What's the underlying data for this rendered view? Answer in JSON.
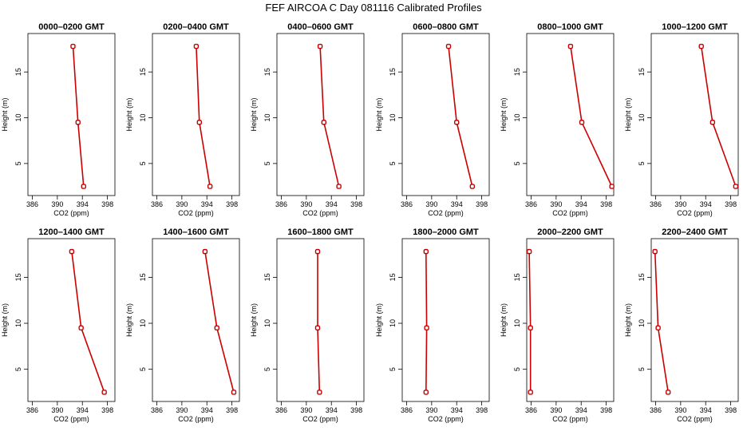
{
  "figure": {
    "title": "FEF AIRCOA C  Day 081116  Calibrated Profiles"
  },
  "chart_data": [
    {
      "type": "line",
      "title": "0000–0200 GMT",
      "xlabel": "CO2 (ppm)",
      "ylabel": "Height (m)",
      "xlim": [
        385.3,
        399.2
      ],
      "ylim": [
        1.5,
        19.2
      ],
      "xticks": [
        386,
        390,
        394,
        398
      ],
      "xtick_labels": [
        "386",
        "390",
        "394",
        "398"
      ],
      "yticks": [
        5,
        10,
        15
      ],
      "ytick_labels": [
        "5",
        "10",
        "15"
      ],
      "points": [
        {
          "co2": 392.5,
          "height": 17.8
        },
        {
          "co2": 393.3,
          "height": 9.5
        },
        {
          "co2": 394.2,
          "height": 2.5
        }
      ]
    },
    {
      "type": "line",
      "title": "0200–0400 GMT",
      "xlabel": "CO2 (ppm)",
      "ylabel": "Height (m)",
      "xlim": [
        385.3,
        399.2
      ],
      "ylim": [
        1.5,
        19.2
      ],
      "xticks": [
        386,
        390,
        394,
        398
      ],
      "xtick_labels": [
        "386",
        "390",
        "394",
        "398"
      ],
      "yticks": [
        5,
        10,
        15
      ],
      "ytick_labels": [
        "5",
        "10",
        "15"
      ],
      "points": [
        {
          "co2": 392.3,
          "height": 17.8
        },
        {
          "co2": 392.8,
          "height": 9.5
        },
        {
          "co2": 394.5,
          "height": 2.5
        }
      ]
    },
    {
      "type": "line",
      "title": "0400–0600 GMT",
      "xlabel": "CO2 (ppm)",
      "ylabel": "Height (m)",
      "xlim": [
        385.3,
        399.2
      ],
      "ylim": [
        1.5,
        19.2
      ],
      "xticks": [
        386,
        390,
        394,
        398
      ],
      "xtick_labels": [
        "386",
        "390",
        "394",
        "398"
      ],
      "yticks": [
        5,
        10,
        15
      ],
      "ytick_labels": [
        "5",
        "10",
        "15"
      ],
      "points": [
        {
          "co2": 392.2,
          "height": 17.8
        },
        {
          "co2": 392.8,
          "height": 9.5
        },
        {
          "co2": 395.2,
          "height": 2.5
        }
      ]
    },
    {
      "type": "line",
      "title": "0600–0800 GMT",
      "xlabel": "CO2 (ppm)",
      "ylabel": "Height (m)",
      "xlim": [
        385.3,
        399.2
      ],
      "ylim": [
        1.5,
        19.2
      ],
      "xticks": [
        386,
        390,
        394,
        398
      ],
      "xtick_labels": [
        "386",
        "390",
        "394",
        "398"
      ],
      "yticks": [
        5,
        10,
        15
      ],
      "ytick_labels": [
        "5",
        "10",
        "15"
      ],
      "points": [
        {
          "co2": 392.7,
          "height": 17.8
        },
        {
          "co2": 394.0,
          "height": 9.5
        },
        {
          "co2": 396.5,
          "height": 2.5
        }
      ]
    },
    {
      "type": "line",
      "title": "0800–1000 GMT",
      "xlabel": "CO2 (ppm)",
      "ylabel": "Height (m)",
      "xlim": [
        385.3,
        399.2
      ],
      "ylim": [
        1.5,
        19.2
      ],
      "xticks": [
        386,
        390,
        394,
        398
      ],
      "xtick_labels": [
        "386",
        "390",
        "394",
        "398"
      ],
      "yticks": [
        5,
        10,
        15
      ],
      "ytick_labels": [
        "5",
        "10",
        "15"
      ],
      "points": [
        {
          "co2": 392.3,
          "height": 17.8
        },
        {
          "co2": 394.1,
          "height": 9.5
        },
        {
          "co2": 398.9,
          "height": 2.5
        }
      ]
    },
    {
      "type": "line",
      "title": "1000–1200 GMT",
      "xlabel": "CO2 (ppm)",
      "ylabel": "Height (m)",
      "xlim": [
        385.3,
        399.2
      ],
      "ylim": [
        1.5,
        19.2
      ],
      "xticks": [
        386,
        390,
        394,
        398
      ],
      "xtick_labels": [
        "386",
        "390",
        "394",
        "398"
      ],
      "yticks": [
        5,
        10,
        15
      ],
      "ytick_labels": [
        "5",
        "10",
        "15"
      ],
      "points": [
        {
          "co2": 393.3,
          "height": 17.8
        },
        {
          "co2": 395.1,
          "height": 9.5
        },
        {
          "co2": 398.8,
          "height": 2.5
        }
      ]
    },
    {
      "type": "line",
      "title": "1200–1400 GMT",
      "xlabel": "CO2 (ppm)",
      "ylabel": "Height (m)",
      "xlim": [
        385.3,
        399.2
      ],
      "ylim": [
        1.5,
        19.2
      ],
      "xticks": [
        386,
        390,
        394,
        398
      ],
      "xtick_labels": [
        "386",
        "390",
        "394",
        "398"
      ],
      "yticks": [
        5,
        10,
        15
      ],
      "ytick_labels": [
        "5",
        "10",
        "15"
      ],
      "points": [
        {
          "co2": 392.3,
          "height": 17.8
        },
        {
          "co2": 393.8,
          "height": 9.5
        },
        {
          "co2": 397.5,
          "height": 2.5
        }
      ]
    },
    {
      "type": "line",
      "title": "1400–1600 GMT",
      "xlabel": "CO2 (ppm)",
      "ylabel": "Height (m)",
      "xlim": [
        385.3,
        399.2
      ],
      "ylim": [
        1.5,
        19.2
      ],
      "xticks": [
        386,
        390,
        394,
        398
      ],
      "xtick_labels": [
        "386",
        "390",
        "394",
        "398"
      ],
      "yticks": [
        5,
        10,
        15
      ],
      "ytick_labels": [
        "5",
        "10",
        "15"
      ],
      "points": [
        {
          "co2": 393.7,
          "height": 17.8
        },
        {
          "co2": 395.6,
          "height": 9.5
        },
        {
          "co2": 398.3,
          "height": 2.5
        }
      ]
    },
    {
      "type": "line",
      "title": "1600–1800 GMT",
      "xlabel": "CO2 (ppm)",
      "ylabel": "Height (m)",
      "xlim": [
        385.3,
        399.2
      ],
      "ylim": [
        1.5,
        19.2
      ],
      "xticks": [
        386,
        390,
        394,
        398
      ],
      "xtick_labels": [
        "386",
        "390",
        "394",
        "398"
      ],
      "yticks": [
        5,
        10,
        15
      ],
      "ytick_labels": [
        "5",
        "10",
        "15"
      ],
      "points": [
        {
          "co2": 391.8,
          "height": 17.8
        },
        {
          "co2": 391.8,
          "height": 9.5
        },
        {
          "co2": 392.1,
          "height": 2.5
        }
      ]
    },
    {
      "type": "line",
      "title": "1800–2000 GMT",
      "xlabel": "CO2 (ppm)",
      "ylabel": "Height (m)",
      "xlim": [
        385.3,
        399.2
      ],
      "ylim": [
        1.5,
        19.2
      ],
      "xticks": [
        386,
        390,
        394,
        398
      ],
      "xtick_labels": [
        "386",
        "390",
        "394",
        "398"
      ],
      "yticks": [
        5,
        10,
        15
      ],
      "ytick_labels": [
        "5",
        "10",
        "15"
      ],
      "points": [
        {
          "co2": 389.1,
          "height": 17.8
        },
        {
          "co2": 389.2,
          "height": 9.5
        },
        {
          "co2": 389.1,
          "height": 2.5
        }
      ]
    },
    {
      "type": "line",
      "title": "2000–2200 GMT",
      "xlabel": "CO2 (ppm)",
      "ylabel": "Height (m)",
      "xlim": [
        385.3,
        399.2
      ],
      "ylim": [
        1.5,
        19.2
      ],
      "xticks": [
        386,
        390,
        394,
        398
      ],
      "xtick_labels": [
        "386",
        "390",
        "394",
        "398"
      ],
      "yticks": [
        5,
        10,
        15
      ],
      "ytick_labels": [
        "5",
        "10",
        "15"
      ],
      "points": [
        {
          "co2": 385.7,
          "height": 17.8
        },
        {
          "co2": 385.9,
          "height": 9.5
        },
        {
          "co2": 385.9,
          "height": 2.5
        }
      ]
    },
    {
      "type": "line",
      "title": "2200–2400 GMT",
      "xlabel": "CO2 (ppm)",
      "ylabel": "Height (m)",
      "xlim": [
        385.3,
        399.2
      ],
      "ylim": [
        1.5,
        19.2
      ],
      "xticks": [
        386,
        390,
        394,
        398
      ],
      "xtick_labels": [
        "386",
        "390",
        "394",
        "398"
      ],
      "yticks": [
        5,
        10,
        15
      ],
      "ytick_labels": [
        "5",
        "10",
        "15"
      ],
      "points": [
        {
          "co2": 385.9,
          "height": 17.8
        },
        {
          "co2": 386.4,
          "height": 9.5
        },
        {
          "co2": 388.0,
          "height": 2.5
        }
      ]
    }
  ]
}
